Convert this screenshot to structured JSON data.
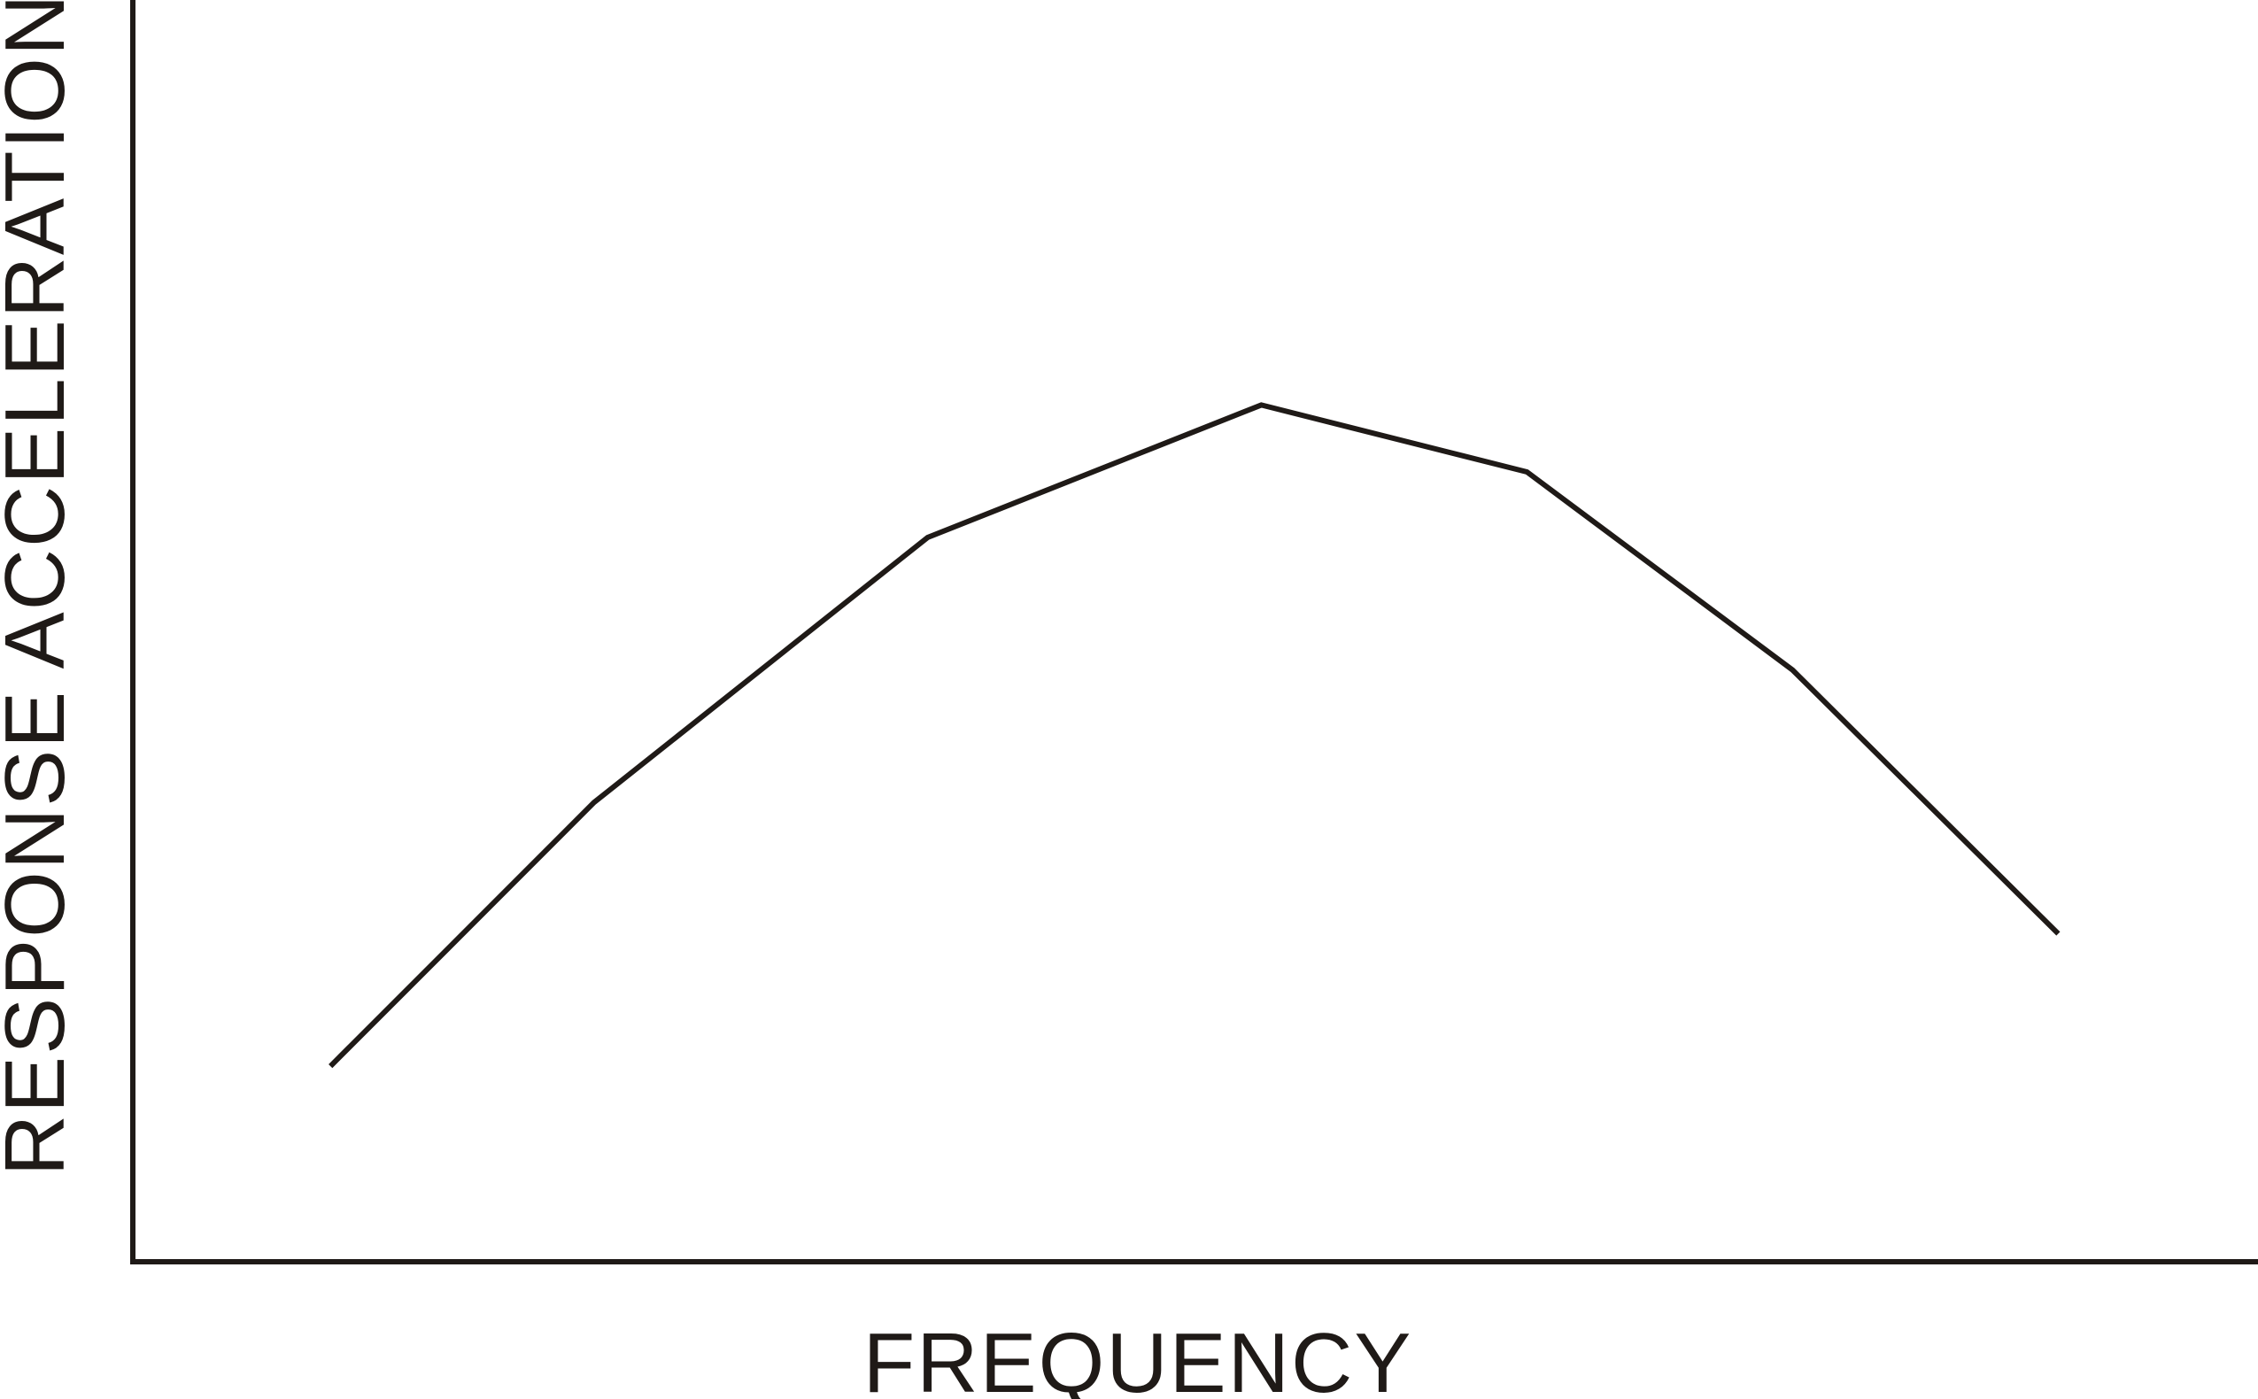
{
  "chart_data": {
    "type": "line",
    "title": "",
    "xlabel": "FREQUENCY",
    "ylabel": "RESPONSE ACCELERATION",
    "x_ticks_shown": false,
    "y_ticks_shown": false,
    "grid": false,
    "xlim": [
      0,
      10
    ],
    "ylim": [
      0,
      10
    ],
    "series": [
      {
        "color": "#1f1a17",
        "points": [
          {
            "x": 0.93,
            "y": 1.55
          },
          {
            "x": 2.17,
            "y": 3.64
          },
          {
            "x": 3.74,
            "y": 5.74
          },
          {
            "x": 5.31,
            "y": 6.79
          },
          {
            "x": 6.56,
            "y": 6.26
          },
          {
            "x": 7.81,
            "y": 4.69
          },
          {
            "x": 9.06,
            "y": 2.6
          }
        ]
      }
    ]
  }
}
